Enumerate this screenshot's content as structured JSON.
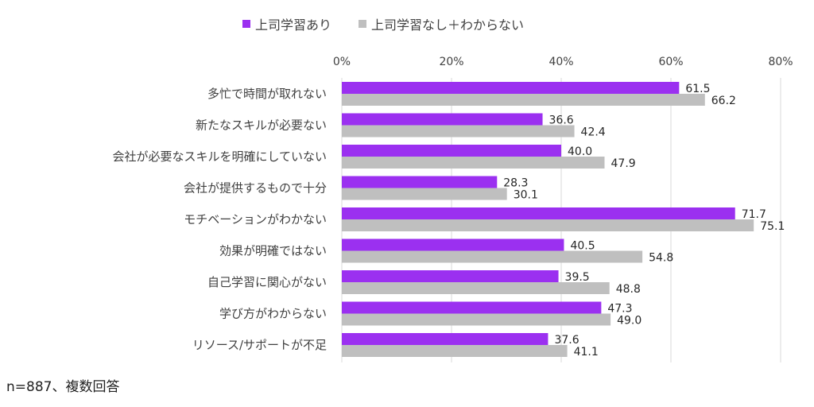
{
  "chart_data": {
    "type": "bar",
    "orientation": "horizontal",
    "categories": [
      "多忙で時間が取れない",
      "新たなスキルが必要ない",
      "会社が必要なスキルを明確にしていない",
      "会社が提供するもので十分",
      "モチベーションがわかない",
      "効果が明確ではない",
      "自己学習に関心がない",
      "学び方がわからない",
      "リソース/サポートが不足"
    ],
    "series": [
      {
        "name": "上司学習あり",
        "color": "#9b30f0",
        "values": [
          61.5,
          36.6,
          40.0,
          28.3,
          71.7,
          40.5,
          39.5,
          47.3,
          37.6
        ]
      },
      {
        "name": "上司学習なし＋わからない",
        "color": "#bfbfbf",
        "values": [
          66.2,
          42.4,
          47.9,
          30.1,
          75.1,
          54.8,
          48.8,
          49.0,
          41.1
        ]
      }
    ],
    "xlim": [
      0,
      80
    ],
    "xticks": [
      0,
      20,
      40,
      60,
      80
    ],
    "xtick_suffix": "%",
    "grid": true,
    "legend_position": "top-center",
    "data_labels": true,
    "value_decimals": 1
  },
  "note": "n=887、複数回答"
}
